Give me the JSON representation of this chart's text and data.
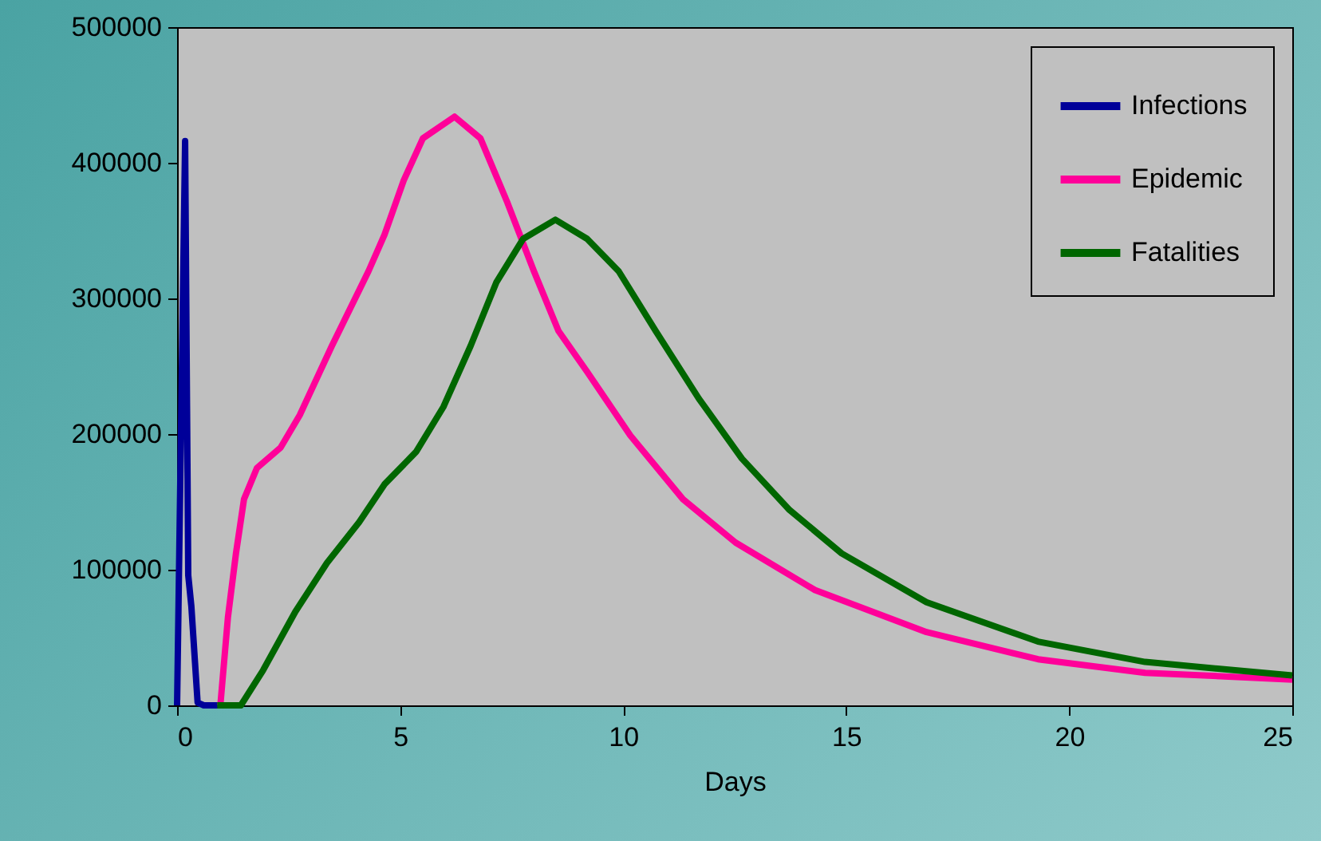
{
  "chart_data": {
    "type": "line",
    "xlabel": "Days",
    "xlim": [
      0,
      25
    ],
    "xticks": [
      0,
      5,
      10,
      15,
      20,
      25
    ],
    "ylim": [
      0,
      500000
    ],
    "yticks": [
      0,
      100000,
      200000,
      300000,
      400000,
      500000
    ],
    "grid": false,
    "legend": "top right",
    "line_style": "solid",
    "marker": "none",
    "series": [
      {
        "name": "Infections",
        "color": "#000099",
        "x": [
          0,
          0.18,
          0.25,
          0.32,
          0.46,
          0.6,
          1.4
        ],
        "values": [
          0,
          416000,
          96000,
          73000,
          2000,
          0,
          0
        ]
      },
      {
        "name": "Epidemic",
        "color": "#ff0099",
        "x": [
          0.97,
          1.14,
          1.32,
          1.5,
          1.79,
          2.32,
          2.75,
          3.47,
          4.29,
          4.65,
          5.08,
          5.51,
          6.22,
          6.8,
          7.4,
          8.0,
          8.55,
          9.19,
          10.16,
          11.34,
          12.52,
          14.3,
          16.8,
          19.3,
          21.7,
          25
        ],
        "values": [
          0,
          65000,
          112000,
          152000,
          175000,
          190000,
          214000,
          265000,
          320000,
          347000,
          387000,
          418000,
          434000,
          418000,
          371000,
          320000,
          276000,
          246000,
          199000,
          152000,
          120000,
          85000,
          54000,
          34000,
          24000,
          19000
        ]
      },
      {
        "name": "Fatalities",
        "color": "#006600",
        "x": [
          0.9,
          1.43,
          1.93,
          2.65,
          3.36,
          4.08,
          4.65,
          5.36,
          5.97,
          6.58,
          7.16,
          7.76,
          8.48,
          9.19,
          9.9,
          10.73,
          11.7,
          12.66,
          13.73,
          14.9,
          16.8,
          19.3,
          21.7,
          25
        ],
        "values": [
          0,
          0,
          26000,
          69000,
          105000,
          135000,
          163000,
          187000,
          220000,
          265000,
          312000,
          344000,
          358000,
          344000,
          320000,
          276000,
          226000,
          182000,
          144000,
          112000,
          76000,
          47000,
          32000,
          22000
        ]
      }
    ]
  }
}
